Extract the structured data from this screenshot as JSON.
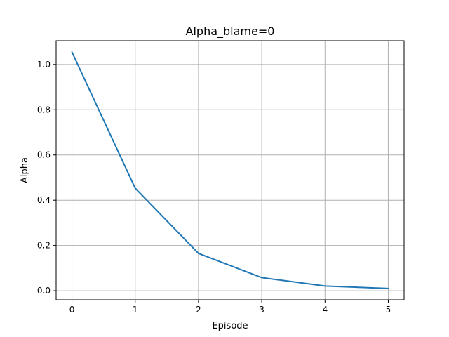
{
  "chart_data": {
    "type": "line",
    "title": "Alpha_blame=0",
    "xlabel": "Episode",
    "ylabel": "Alpha",
    "x": [
      0,
      1,
      2,
      3,
      4,
      5
    ],
    "series": [
      {
        "values": [
          1.055,
          0.453,
          0.165,
          0.058,
          0.021,
          0.01
        ]
      }
    ],
    "xlim": [
      -0.25,
      5.25
    ],
    "ylim": [
      -0.04,
      1.105
    ],
    "xticks": [
      0,
      1,
      2,
      3,
      4,
      5
    ],
    "xtick_labels": [
      "0",
      "1",
      "2",
      "3",
      "4",
      "5"
    ],
    "yticks": [
      0.0,
      0.2,
      0.4,
      0.6,
      0.8,
      1.0
    ],
    "ytick_labels": [
      "0.0",
      "0.2",
      "0.4",
      "0.6",
      "0.8",
      "1.0"
    ],
    "grid": true,
    "line_color": "#1f77b4",
    "grid_color": "#b0b0b0"
  }
}
